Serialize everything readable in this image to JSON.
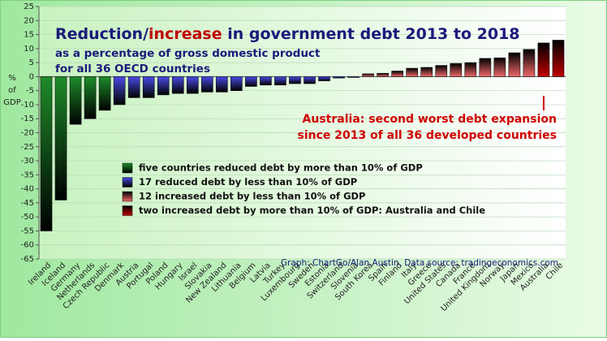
{
  "chart_data": {
    "type": "bar",
    "title": [
      "Reduction/",
      "increase",
      " in government debt 2013 to 2018"
    ],
    "title_colors": [
      "#1a1a7a",
      "#c00000",
      "#1a1a7a"
    ],
    "subtitle": [
      "as a percentage of gross domestic product",
      "for all 36 OECD countries"
    ],
    "ylabel": [
      "%",
      "of",
      "GDP"
    ],
    "annotation": [
      "Australia: second worst debt expansion",
      "since 2013 of all 36 developed countries"
    ],
    "annotation_target": "Australia",
    "source": "Graph: ChartGo/Alan Austin. Data source: tradingeconomics.com",
    "categories": [
      "Ireland",
      "Iceland",
      "Germany",
      "Netherlands",
      "Czech Republic",
      "Denmark",
      "Austria",
      "Portugal",
      "Poland",
      "Hungary",
      "Israel",
      "Slovakia",
      "New Zealand",
      "Lithuania",
      "Belgium",
      "Latvia",
      "Turkey",
      "Luxembourg",
      "Sweden",
      "Estonia",
      "Switzerland",
      "Slovenia",
      "South Korea",
      "Spain",
      "Finland",
      "Italy",
      "Greece",
      "United States",
      "Canada",
      "France",
      "United Kingdom",
      "Norway",
      "Japan",
      "Mexico",
      "Australia",
      "Chile"
    ],
    "series": [
      {
        "name": "five countries reduced debt by more than 10% of GDP",
        "color": "#1e8c2a",
        "values": [
          -55,
          -44,
          -17,
          -15,
          -12,
          null,
          null,
          null,
          null,
          null,
          null,
          null,
          null,
          null,
          null,
          null,
          null,
          null,
          null,
          null,
          null,
          null,
          null,
          null,
          null,
          null,
          null,
          null,
          null,
          null,
          null,
          null,
          null,
          null,
          null,
          null
        ]
      },
      {
        "name": "17 reduced debt by less than 10% of GDP",
        "color": "#4a4ae6",
        "values": [
          null,
          null,
          null,
          null,
          null,
          -10,
          -7.5,
          -7.5,
          -6.5,
          -6,
          -6,
          -5.5,
          -5.5,
          -5,
          -3.5,
          -3,
          -3,
          -2.5,
          -2.5,
          -1.5,
          -0.5,
          -0.3,
          null,
          null,
          null,
          null,
          null,
          null,
          null,
          null,
          null,
          null,
          null,
          null,
          null,
          null
        ]
      },
      {
        "name": "12 increased debt by less than 10% of GDP",
        "color": "#f06868",
        "values": [
          null,
          null,
          null,
          null,
          null,
          null,
          null,
          null,
          null,
          null,
          null,
          null,
          null,
          null,
          null,
          null,
          null,
          null,
          null,
          null,
          null,
          null,
          1,
          1.2,
          2,
          3,
          3.3,
          4,
          4.7,
          5,
          6.5,
          6.7,
          8.5,
          9.7,
          null,
          null
        ]
      },
      {
        "name": "two increased debt by more than 10% of GDP: Australia and Chile",
        "color": "#c00000",
        "values": [
          null,
          null,
          null,
          null,
          null,
          null,
          null,
          null,
          null,
          null,
          null,
          null,
          null,
          null,
          null,
          null,
          null,
          null,
          null,
          null,
          null,
          null,
          null,
          null,
          null,
          null,
          null,
          null,
          null,
          null,
          null,
          null,
          null,
          null,
          12,
          13
        ]
      }
    ],
    "ylim": [
      -65,
      25
    ],
    "yticks": [
      -65,
      -60,
      -55,
      -50,
      -45,
      -40,
      -35,
      -30,
      -25,
      -20,
      -15,
      -10,
      -5,
      0,
      5,
      10,
      15,
      20,
      25
    ],
    "grid": true
  }
}
